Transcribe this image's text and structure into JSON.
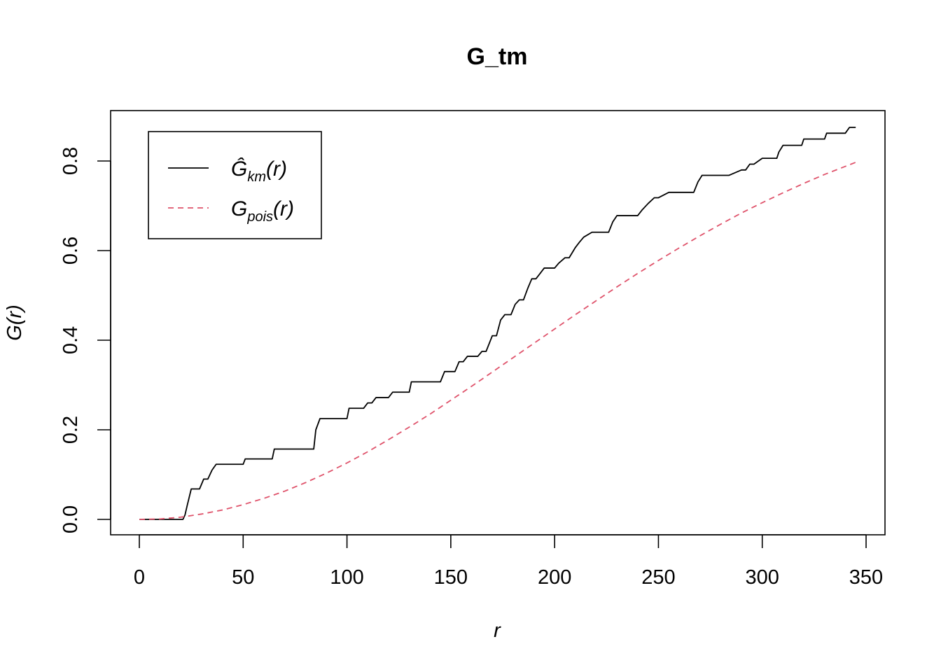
{
  "chart_data": {
    "type": "line",
    "title": "G_tm",
    "xlabel": "r",
    "ylabel": "G(r)",
    "xlim": [
      0,
      345
    ],
    "ylim": [
      0,
      0.88
    ],
    "xticks": [
      0,
      50,
      100,
      150,
      200,
      250,
      300,
      350
    ],
    "yticks": [
      0.0,
      0.2,
      0.4,
      0.6,
      0.8
    ],
    "xtick_labels": [
      "0",
      "50",
      "100",
      "150",
      "200",
      "250",
      "300",
      "350"
    ],
    "ytick_labels": [
      "0.0",
      "0.2",
      "0.4",
      "0.6",
      "0.8"
    ],
    "grid": false,
    "legend_position": "top-left",
    "series": [
      {
        "name": "Ĝkm(r)",
        "legend_main": "Ĝ",
        "legend_sub": "km",
        "legend_tail": "(r)",
        "color": "#000000",
        "dash": "solid",
        "x": [
          0,
          21,
          22,
          23,
          25,
          29,
          31,
          33,
          35,
          37,
          50,
          51,
          64,
          65,
          84,
          85,
          87,
          100,
          101,
          108,
          110,
          112,
          114,
          120,
          122,
          130,
          131,
          145,
          147,
          152,
          154,
          156,
          158,
          163,
          165,
          167,
          170,
          172,
          174,
          176,
          179,
          181,
          183,
          185,
          187,
          189,
          191,
          193,
          195,
          200,
          202,
          205,
          207,
          210,
          212,
          214,
          218,
          226,
          228,
          230,
          240,
          242,
          245,
          248,
          250,
          255,
          260,
          267,
          269,
          271,
          280,
          284,
          290,
          292,
          294,
          296,
          300,
          301,
          302,
          307,
          308,
          310,
          314,
          319,
          320,
          327,
          330,
          331,
          338,
          340,
          342,
          345
        ],
        "y": [
          0.0,
          0.0,
          0.01,
          0.03,
          0.068,
          0.068,
          0.09,
          0.09,
          0.11,
          0.123,
          0.123,
          0.135,
          0.135,
          0.157,
          0.157,
          0.2,
          0.225,
          0.225,
          0.248,
          0.248,
          0.26,
          0.26,
          0.272,
          0.272,
          0.284,
          0.284,
          0.307,
          0.307,
          0.33,
          0.33,
          0.352,
          0.352,
          0.364,
          0.364,
          0.375,
          0.375,
          0.41,
          0.41,
          0.445,
          0.457,
          0.457,
          0.48,
          0.49,
          0.49,
          0.515,
          0.537,
          0.537,
          0.549,
          0.561,
          0.561,
          0.572,
          0.584,
          0.584,
          0.607,
          0.619,
          0.63,
          0.641,
          0.641,
          0.664,
          0.678,
          0.678,
          0.69,
          0.705,
          0.718,
          0.718,
          0.73,
          0.73,
          0.73,
          0.753,
          0.768,
          0.768,
          0.768,
          0.78,
          0.78,
          0.793,
          0.793,
          0.806,
          0.806,
          0.806,
          0.806,
          0.82,
          0.835,
          0.835,
          0.835,
          0.849,
          0.849,
          0.849,
          0.862,
          0.862,
          0.862,
          0.875,
          0.875
        ]
      },
      {
        "name": "Gpois(r)",
        "legend_main": "G",
        "legend_sub": "pois",
        "legend_tail": "(r)",
        "color": "#df536b",
        "dash": "dashed",
        "x": [
          0,
          10,
          20,
          30,
          40,
          50,
          60,
          70,
          80,
          90,
          100,
          110,
          120,
          130,
          140,
          150,
          160,
          170,
          180,
          190,
          200,
          210,
          220,
          230,
          240,
          250,
          260,
          270,
          280,
          290,
          300,
          310,
          320,
          330,
          340,
          345
        ],
        "y": [
          0.0,
          0.001,
          0.005,
          0.012,
          0.021,
          0.033,
          0.047,
          0.063,
          0.082,
          0.103,
          0.126,
          0.151,
          0.178,
          0.206,
          0.235,
          0.266,
          0.297,
          0.329,
          0.361,
          0.393,
          0.425,
          0.457,
          0.488,
          0.519,
          0.549,
          0.578,
          0.606,
          0.633,
          0.659,
          0.684,
          0.707,
          0.729,
          0.75,
          0.77,
          0.788,
          0.797
        ]
      }
    ]
  }
}
